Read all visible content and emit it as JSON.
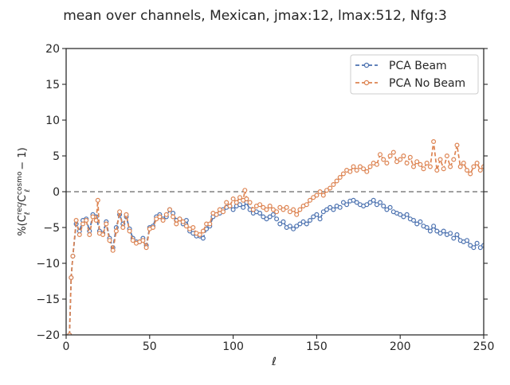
{
  "chart_data": {
    "type": "line",
    "title": "mean over channels, Mexican, jmax:12, lmax:512, Nfg:3",
    "xlabel": "ℓ",
    "ylabel_parts": {
      "prefix": "%(C",
      "sup1": "rec",
      "sub1": "ℓ",
      "mid": "/C",
      "sup2": "cosmo",
      "sub2": "ℓ",
      "suffix": " − 1)"
    },
    "xlim": [
      0,
      250
    ],
    "ylim": [
      -20,
      20
    ],
    "xticks": [
      0,
      50,
      100,
      150,
      200,
      250
    ],
    "yticks": [
      -20,
      -15,
      -10,
      -5,
      0,
      5,
      10,
      15,
      20
    ],
    "reference_line": {
      "y": 0,
      "style": "dashed",
      "color": "#808080"
    },
    "legend_position": "top-right",
    "grid": false,
    "series": [
      {
        "name": "PCA Beam",
        "color": "#4c72b0",
        "style": "dashed-with-hollow-markers",
        "points": [
          [
            2,
            -20
          ],
          [
            3,
            -12
          ],
          [
            4,
            -9
          ],
          [
            6,
            -4.5
          ],
          [
            8,
            -5.5
          ],
          [
            10,
            -4
          ],
          [
            12,
            -3.8
          ],
          [
            14,
            -5.5
          ],
          [
            16,
            -3.2
          ],
          [
            18,
            -3.5
          ],
          [
            20,
            -5.5
          ],
          [
            22,
            -5.8
          ],
          [
            24,
            -4.2
          ],
          [
            26,
            -6.5
          ],
          [
            28,
            -7.8
          ],
          [
            30,
            -5
          ],
          [
            32,
            -3.2
          ],
          [
            34,
            -4.5
          ],
          [
            36,
            -3.5
          ],
          [
            38,
            -5.2
          ],
          [
            40,
            -6.5
          ],
          [
            42,
            -7
          ],
          [
            44,
            -7
          ],
          [
            46,
            -6.5
          ],
          [
            48,
            -7.5
          ],
          [
            50,
            -5
          ],
          [
            52,
            -4.8
          ],
          [
            54,
            -3.5
          ],
          [
            56,
            -3.2
          ],
          [
            58,
            -3.8
          ],
          [
            60,
            -3.5
          ],
          [
            62,
            -2.5
          ],
          [
            64,
            -3
          ],
          [
            66,
            -4
          ],
          [
            68,
            -3.8
          ],
          [
            70,
            -4.5
          ],
          [
            72,
            -4
          ],
          [
            74,
            -5.5
          ],
          [
            76,
            -5.8
          ],
          [
            78,
            -6.2
          ],
          [
            80,
            -6.2
          ],
          [
            82,
            -6.5
          ],
          [
            84,
            -5.2
          ],
          [
            86,
            -4.8
          ],
          [
            88,
            -3.5
          ],
          [
            90,
            -3.2
          ],
          [
            92,
            -3
          ],
          [
            94,
            -2.5
          ],
          [
            96,
            -2.2
          ],
          [
            98,
            -2
          ],
          [
            100,
            -2.5
          ],
          [
            102,
            -2
          ],
          [
            104,
            -1.8
          ],
          [
            106,
            -2.2
          ],
          [
            108,
            -1.5
          ],
          [
            110,
            -2.5
          ],
          [
            112,
            -3
          ],
          [
            114,
            -2.8
          ],
          [
            116,
            -3
          ],
          [
            118,
            -3.5
          ],
          [
            120,
            -3.8
          ],
          [
            122,
            -3.5
          ],
          [
            124,
            -3.2
          ],
          [
            126,
            -3.8
          ],
          [
            128,
            -4.5
          ],
          [
            130,
            -4.2
          ],
          [
            132,
            -5
          ],
          [
            134,
            -4.8
          ],
          [
            136,
            -5.2
          ],
          [
            138,
            -4.8
          ],
          [
            140,
            -4.5
          ],
          [
            142,
            -4.2
          ],
          [
            144,
            -4.5
          ],
          [
            146,
            -4
          ],
          [
            148,
            -3.5
          ],
          [
            150,
            -3.2
          ],
          [
            152,
            -3.8
          ],
          [
            154,
            -2.8
          ],
          [
            156,
            -2.5
          ],
          [
            158,
            -2.2
          ],
          [
            160,
            -2.5
          ],
          [
            162,
            -2
          ],
          [
            164,
            -2.2
          ],
          [
            166,
            -1.5
          ],
          [
            168,
            -1.8
          ],
          [
            170,
            -1.3
          ],
          [
            172,
            -1.2
          ],
          [
            174,
            -1.5
          ],
          [
            176,
            -1.8
          ],
          [
            178,
            -2
          ],
          [
            180,
            -1.8
          ],
          [
            182,
            -1.5
          ],
          [
            184,
            -1.2
          ],
          [
            186,
            -1.8
          ],
          [
            188,
            -1.5
          ],
          [
            190,
            -2
          ],
          [
            192,
            -2.5
          ],
          [
            194,
            -2.2
          ],
          [
            196,
            -2.8
          ],
          [
            198,
            -3
          ],
          [
            200,
            -3.2
          ],
          [
            202,
            -3.5
          ],
          [
            204,
            -3.2
          ],
          [
            206,
            -3.8
          ],
          [
            208,
            -4
          ],
          [
            210,
            -4.5
          ],
          [
            212,
            -4.2
          ],
          [
            214,
            -4.8
          ],
          [
            216,
            -5
          ],
          [
            218,
            -5.5
          ],
          [
            220,
            -4.8
          ],
          [
            222,
            -5.5
          ],
          [
            224,
            -5.8
          ],
          [
            226,
            -5.5
          ],
          [
            228,
            -6
          ],
          [
            230,
            -5.8
          ],
          [
            232,
            -6.5
          ],
          [
            234,
            -6
          ],
          [
            236,
            -6.8
          ],
          [
            238,
            -7
          ],
          [
            240,
            -6.8
          ],
          [
            242,
            -7.5
          ],
          [
            244,
            -7.8
          ],
          [
            246,
            -7.2
          ],
          [
            248,
            -7.8
          ],
          [
            250,
            -7.5
          ]
        ]
      },
      {
        "name": "PCA No Beam",
        "color": "#dd8452",
        "style": "dashed-with-hollow-markers",
        "points": [
          [
            2,
            -20
          ],
          [
            3,
            -12
          ],
          [
            4,
            -9
          ],
          [
            6,
            -4
          ],
          [
            8,
            -6
          ],
          [
            10,
            -4.5
          ],
          [
            12,
            -4
          ],
          [
            14,
            -6
          ],
          [
            16,
            -3.5
          ],
          [
            18,
            -4
          ],
          [
            19,
            -1.2
          ],
          [
            20,
            -5.8
          ],
          [
            22,
            -6
          ],
          [
            24,
            -4.5
          ],
          [
            26,
            -6.8
          ],
          [
            28,
            -8.2
          ],
          [
            30,
            -5.5
          ],
          [
            32,
            -2.8
          ],
          [
            34,
            -5
          ],
          [
            36,
            -3.2
          ],
          [
            38,
            -5.5
          ],
          [
            40,
            -6.8
          ],
          [
            42,
            -7.2
          ],
          [
            44,
            -7
          ],
          [
            46,
            -6.8
          ],
          [
            48,
            -7.8
          ],
          [
            50,
            -5.2
          ],
          [
            52,
            -5
          ],
          [
            54,
            -3.8
          ],
          [
            56,
            -3.5
          ],
          [
            58,
            -4
          ],
          [
            60,
            -3.2
          ],
          [
            62,
            -2.5
          ],
          [
            64,
            -3.5
          ],
          [
            66,
            -4.5
          ],
          [
            68,
            -3.8
          ],
          [
            70,
            -4.2
          ],
          [
            72,
            -4.8
          ],
          [
            74,
            -5.2
          ],
          [
            76,
            -5
          ],
          [
            78,
            -5.8
          ],
          [
            80,
            -6
          ],
          [
            82,
            -5.5
          ],
          [
            84,
            -4.5
          ],
          [
            86,
            -4.5
          ],
          [
            88,
            -3
          ],
          [
            90,
            -3.2
          ],
          [
            92,
            -2.5
          ],
          [
            94,
            -2.8
          ],
          [
            96,
            -1.5
          ],
          [
            98,
            -2
          ],
          [
            100,
            -1
          ],
          [
            102,
            -1.5
          ],
          [
            104,
            -0.8
          ],
          [
            106,
            -1.2
          ],
          [
            107,
            0.2
          ],
          [
            108,
            -1
          ],
          [
            110,
            -1.5
          ],
          [
            112,
            -2.5
          ],
          [
            114,
            -2
          ],
          [
            116,
            -1.8
          ],
          [
            118,
            -2.2
          ],
          [
            120,
            -2.5
          ],
          [
            122,
            -2
          ],
          [
            124,
            -2.5
          ],
          [
            126,
            -2.8
          ],
          [
            128,
            -2.2
          ],
          [
            130,
            -2.5
          ],
          [
            132,
            -2.2
          ],
          [
            134,
            -2.8
          ],
          [
            136,
            -2.5
          ],
          [
            138,
            -3.2
          ],
          [
            140,
            -2.5
          ],
          [
            142,
            -2
          ],
          [
            144,
            -1.8
          ],
          [
            146,
            -1.2
          ],
          [
            148,
            -0.8
          ],
          [
            150,
            -0.5
          ],
          [
            152,
            0
          ],
          [
            154,
            -0.5
          ],
          [
            156,
            0.2
          ],
          [
            158,
            0.5
          ],
          [
            160,
            1
          ],
          [
            162,
            1.5
          ],
          [
            164,
            2
          ],
          [
            166,
            2.5
          ],
          [
            168,
            3
          ],
          [
            170,
            2.8
          ],
          [
            172,
            3.5
          ],
          [
            174,
            3
          ],
          [
            176,
            3.5
          ],
          [
            178,
            3.2
          ],
          [
            180,
            2.8
          ],
          [
            182,
            3.5
          ],
          [
            184,
            4
          ],
          [
            186,
            3.8
          ],
          [
            188,
            5.2
          ],
          [
            190,
            4.5
          ],
          [
            192,
            4
          ],
          [
            194,
            5
          ],
          [
            196,
            5.5
          ],
          [
            198,
            4.2
          ],
          [
            200,
            4.5
          ],
          [
            202,
            5
          ],
          [
            204,
            4
          ],
          [
            206,
            4.8
          ],
          [
            208,
            3.5
          ],
          [
            210,
            4.2
          ],
          [
            212,
            3.8
          ],
          [
            214,
            3.2
          ],
          [
            216,
            4
          ],
          [
            218,
            3.5
          ],
          [
            220,
            7
          ],
          [
            222,
            3
          ],
          [
            224,
            4.5
          ],
          [
            226,
            3.2
          ],
          [
            228,
            5
          ],
          [
            230,
            3.5
          ],
          [
            232,
            4.5
          ],
          [
            234,
            6.5
          ],
          [
            236,
            3.5
          ],
          [
            238,
            4
          ],
          [
            240,
            3
          ],
          [
            242,
            2.5
          ],
          [
            244,
            3.5
          ],
          [
            246,
            4
          ],
          [
            248,
            3
          ],
          [
            250,
            3.5
          ]
        ]
      }
    ]
  }
}
